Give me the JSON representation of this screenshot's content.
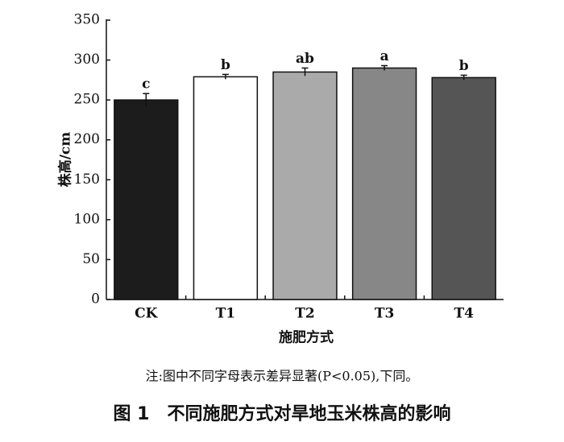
{
  "chart_data": {
    "type": "bar",
    "y_label": "株高/cm",
    "x_label": "施肥方式",
    "categories": [
      "CK",
      "T1",
      "T2",
      "T3",
      "T4"
    ],
    "values": [
      250,
      279,
      285,
      290,
      278
    ],
    "errors": [
      8,
      3,
      5,
      3,
      3
    ],
    "letters": [
      "c",
      "b",
      "ab",
      "a",
      "b"
    ],
    "colors": [
      "#1c1c1c",
      "#ffffff",
      "#aaaaaa",
      "#878787",
      "#555555"
    ],
    "ylim": [
      0,
      350
    ],
    "yticks": [
      0,
      50,
      100,
      150,
      200,
      250,
      300,
      350
    ],
    "grid": false
  },
  "note": "注:图中不同字母表示差异显著(P<0.05),下同。",
  "caption": "图 1　不同施肥方式对旱地玉米株高的影响"
}
